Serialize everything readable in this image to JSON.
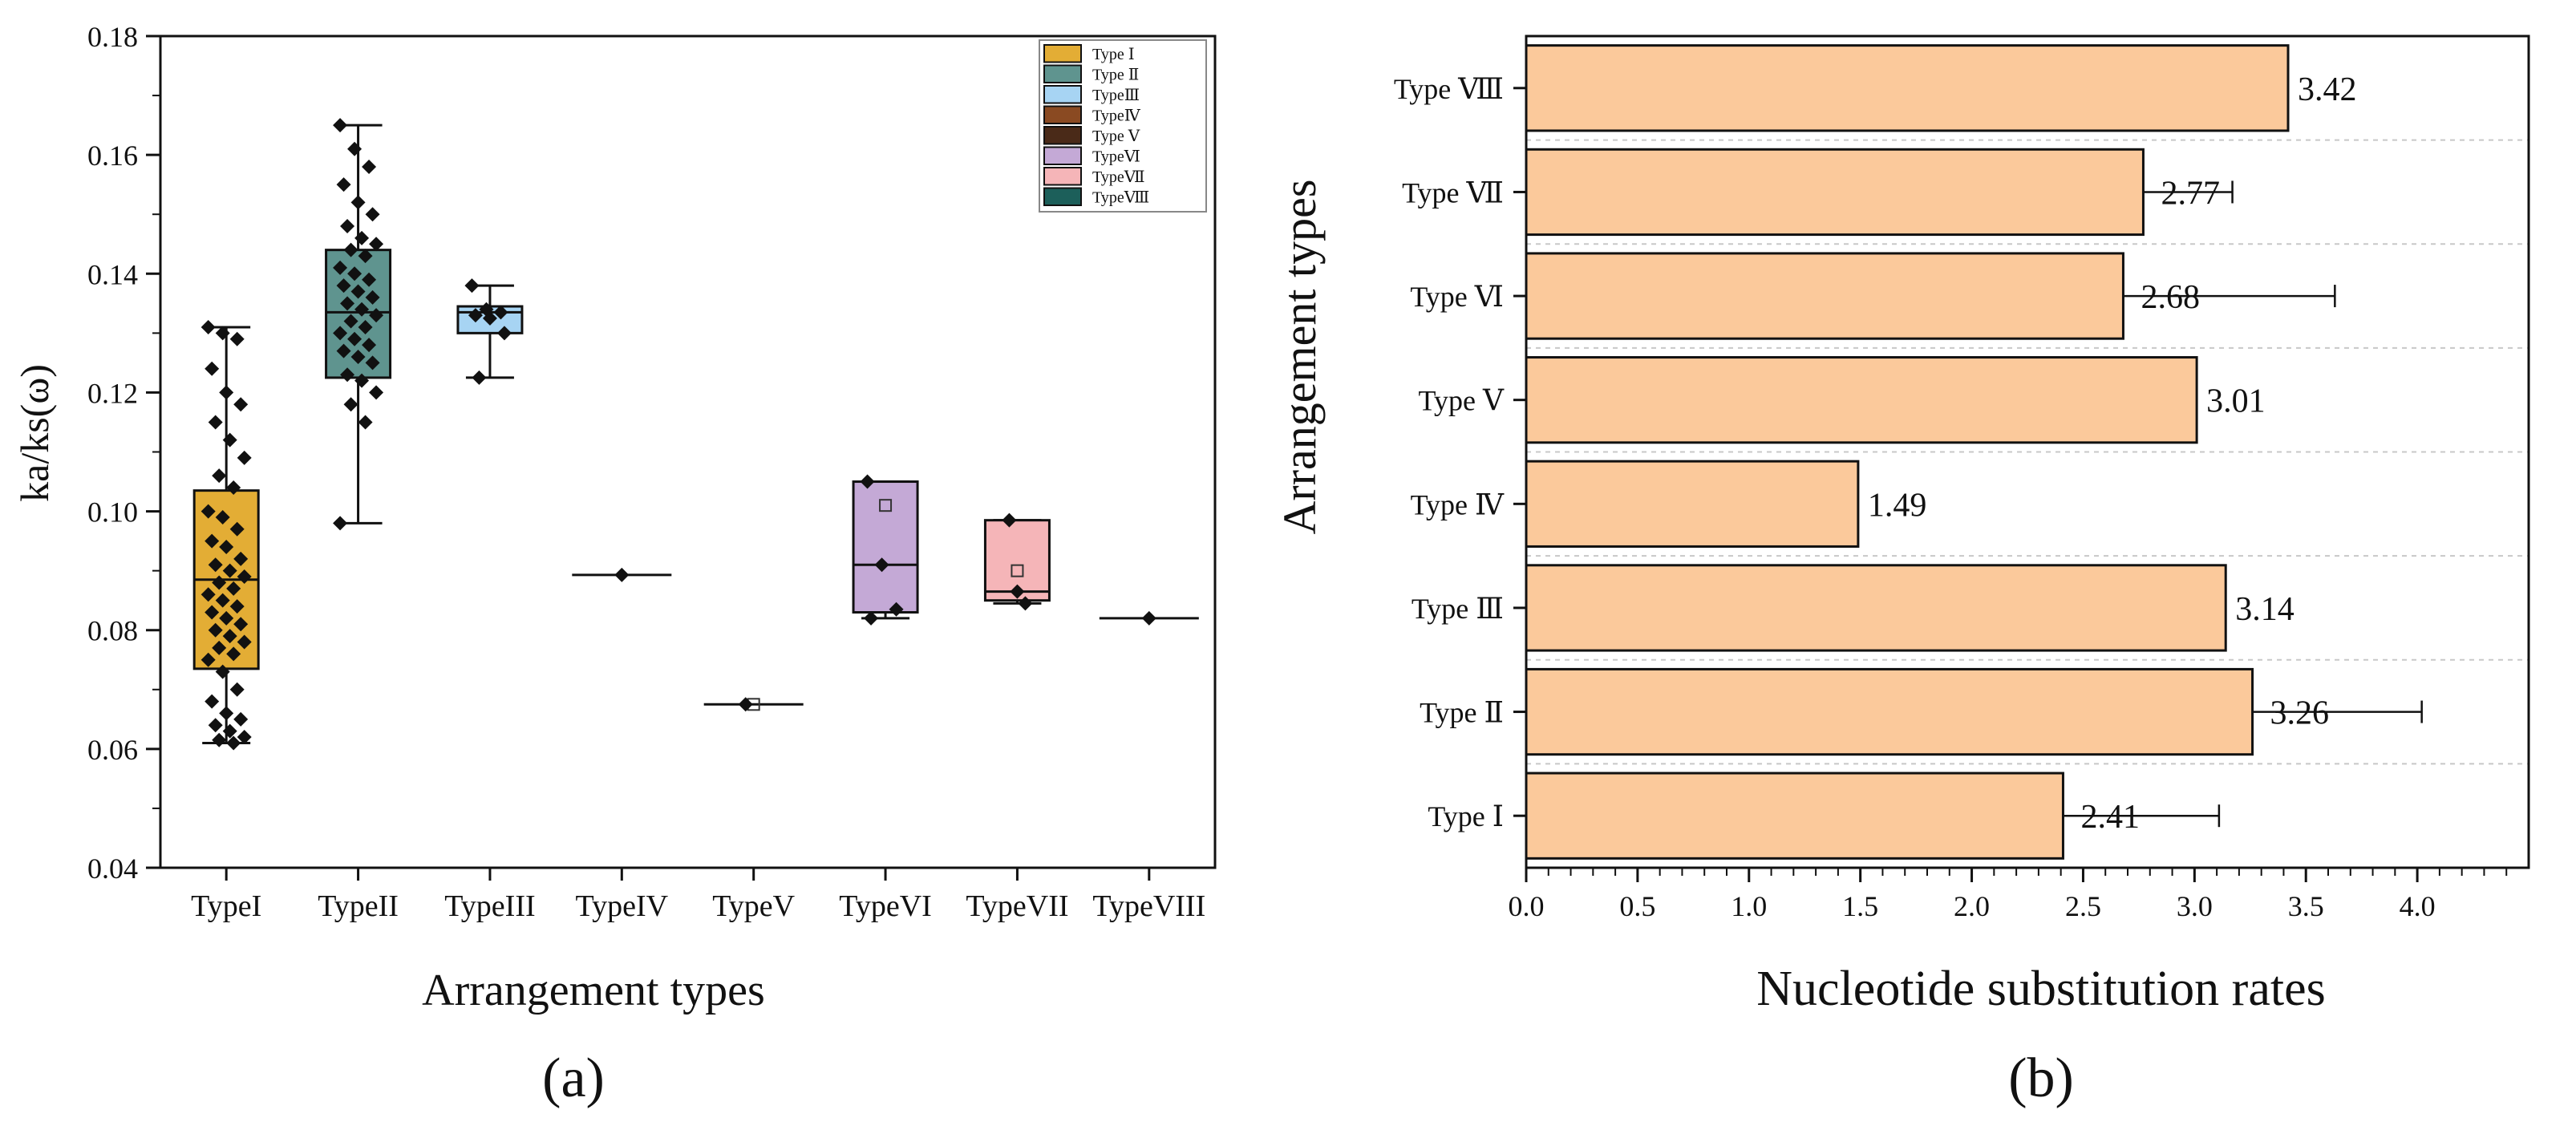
{
  "chart_data": [
    {
      "type": "box",
      "panel_label": "(a)",
      "xlabel": "Arrangement types",
      "ylabel": "ka/ks(ω)",
      "ylim": [
        0.04,
        0.18
      ],
      "yticks": [
        "0.04",
        "0.06",
        "0.08",
        "0.10",
        "0.12",
        "0.14",
        "0.16",
        "0.18"
      ],
      "categories": [
        "TypeI",
        "TypeII",
        "TypeIII",
        "TypeIV",
        "TypeV",
        "TypeVI",
        "TypeVII",
        "TypeVIII"
      ],
      "legend": [
        "Type Ⅰ",
        "Type Ⅱ",
        "TypeⅢ",
        "TypeⅣ",
        "Type Ⅴ",
        "TypeⅥ",
        "TypeⅦ",
        "TypeⅧ"
      ],
      "legend_position": "top-right",
      "colors": [
        "#e3ad35",
        "#5f948f",
        "#a7d4f3",
        "#8a4a22",
        "#4a2a18",
        "#c4a9d6",
        "#f5b5b8",
        "#1c5f5a"
      ],
      "boxes": [
        {
          "whisker_low": 0.061,
          "q1": 0.0735,
          "median": 0.0885,
          "q3": 0.1035,
          "whisker_high": 0.131,
          "mean": null
        },
        {
          "whisker_low": 0.098,
          "q1": 0.1225,
          "median": 0.1335,
          "q3": 0.144,
          "whisker_high": 0.165,
          "mean": null
        },
        {
          "whisker_low": 0.1225,
          "q1": 0.13,
          "median": 0.1335,
          "q3": 0.1345,
          "whisker_high": 0.138,
          "mean": null
        },
        {
          "whisker_low": 0.0893,
          "q1": 0.0893,
          "median": 0.0893,
          "q3": 0.0893,
          "whisker_high": 0.0893,
          "mean": null
        },
        {
          "whisker_low": 0.0675,
          "q1": 0.0675,
          "median": 0.0675,
          "q3": 0.0675,
          "whisker_high": 0.0675,
          "mean": 0.0675
        },
        {
          "whisker_low": 0.082,
          "q1": 0.083,
          "median": 0.091,
          "q3": 0.105,
          "whisker_high": 0.105,
          "mean": 0.101
        },
        {
          "whisker_low": 0.0845,
          "q1": 0.085,
          "median": 0.0865,
          "q3": 0.0985,
          "whisker_high": 0.0985,
          "mean": 0.09
        },
        {
          "whisker_low": 0.082,
          "q1": 0.082,
          "median": 0.082,
          "q3": 0.082,
          "whisker_high": 0.082,
          "mean": null
        }
      ],
      "points": [
        [
          0.131,
          0.13,
          0.129,
          0.124,
          0.12,
          0.118,
          0.115,
          0.112,
          0.109,
          0.106,
          0.104,
          0.1,
          0.099,
          0.097,
          0.095,
          0.094,
          0.092,
          0.091,
          0.09,
          0.089,
          0.088,
          0.087,
          0.086,
          0.085,
          0.084,
          0.083,
          0.082,
          0.081,
          0.08,
          0.079,
          0.078,
          0.077,
          0.076,
          0.075,
          0.073,
          0.07,
          0.068,
          0.066,
          0.065,
          0.064,
          0.063,
          0.062,
          0.0615,
          0.061
        ],
        [
          0.165,
          0.161,
          0.158,
          0.155,
          0.152,
          0.15,
          0.148,
          0.146,
          0.145,
          0.144,
          0.143,
          0.141,
          0.14,
          0.139,
          0.138,
          0.137,
          0.136,
          0.135,
          0.134,
          0.133,
          0.132,
          0.131,
          0.13,
          0.129,
          0.128,
          0.127,
          0.126,
          0.125,
          0.123,
          0.122,
          0.12,
          0.118,
          0.115,
          0.098
        ],
        [
          0.138,
          0.134,
          0.1335,
          0.133,
          0.1325,
          0.13,
          0.1225
        ],
        [
          0.0893
        ],
        [
          0.0675
        ],
        [
          0.105,
          0.091,
          0.0835,
          0.082
        ],
        [
          0.0985,
          0.0865,
          0.0845
        ],
        [
          0.082
        ]
      ]
    },
    {
      "type": "bar",
      "orientation": "horizontal",
      "panel_label": "(b)",
      "xlabel": "Nucleotide substitution rates",
      "ylabel": "Arrangement types",
      "xlim": [
        0.0,
        4.5
      ],
      "xticks": [
        "0.0",
        "0.5",
        "1.0",
        "1.5",
        "2.0",
        "2.5",
        "3.0",
        "3.5",
        "4.0"
      ],
      "bar_color": "#fbc99b",
      "categories": [
        "Type Ⅷ",
        "Type Ⅶ",
        "Type Ⅵ",
        "Type Ⅴ",
        "Type Ⅳ",
        "Type Ⅲ",
        "Type Ⅱ",
        "Type Ⅰ"
      ],
      "values": [
        3.42,
        2.77,
        2.68,
        3.01,
        1.49,
        3.14,
        3.26,
        2.41
      ],
      "labels": [
        "3.42",
        "2.77",
        "2.68",
        "3.01",
        "1.49",
        "3.14",
        "3.26",
        "2.41"
      ],
      "errors": [
        0,
        0.4,
        0.95,
        0,
        0,
        0,
        0.76,
        0.7
      ]
    }
  ]
}
